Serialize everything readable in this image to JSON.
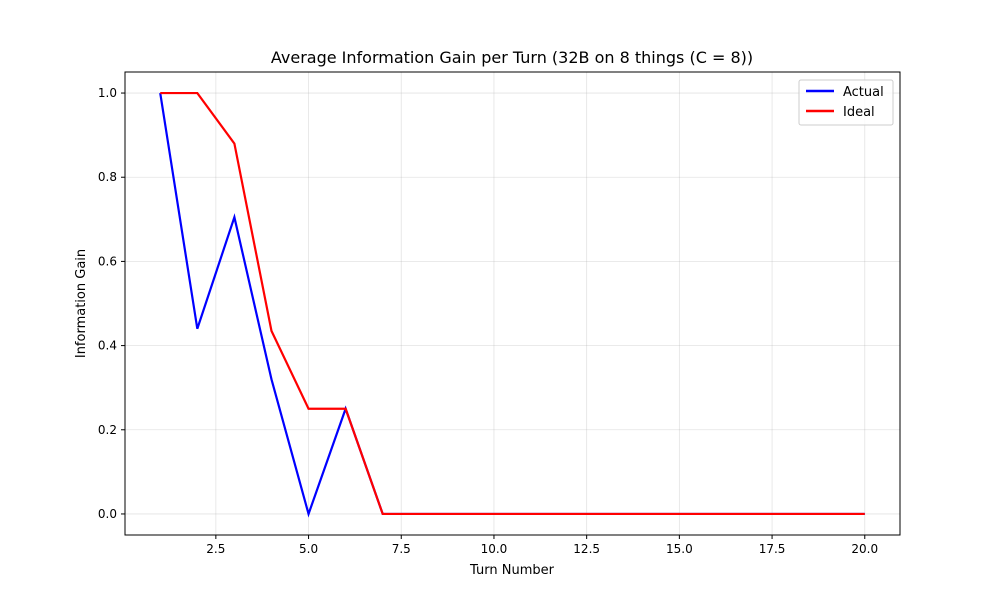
{
  "chart_data": {
    "type": "line",
    "title": "Average Information Gain per Turn (32B on 8 things (C = 8))",
    "xlabel": "Turn Number",
    "ylabel": "Information Gain",
    "xlim": [
      0.05,
      20.95
    ],
    "ylim": [
      -0.05,
      1.05
    ],
    "xticks": [
      2.5,
      5.0,
      7.5,
      10.0,
      12.5,
      15.0,
      17.5,
      20.0
    ],
    "xtick_labels": [
      "2.5",
      "5.0",
      "7.5",
      "10.0",
      "12.5",
      "15.0",
      "17.5",
      "20.0"
    ],
    "yticks": [
      0.0,
      0.2,
      0.4,
      0.6,
      0.8,
      1.0
    ],
    "ytick_labels": [
      "0.0",
      "0.2",
      "0.4",
      "0.6",
      "0.8",
      "1.0"
    ],
    "grid": true,
    "legend_position": "top-right",
    "x": [
      1,
      2,
      3,
      4,
      5,
      6,
      7,
      8,
      9,
      10,
      11,
      12,
      13,
      14,
      15,
      16,
      17,
      18,
      19,
      20
    ],
    "series": [
      {
        "name": "Actual",
        "color": "#0000ff",
        "values": [
          1.0,
          0.44,
          0.705,
          0.32,
          0.0,
          0.25,
          0.0,
          0.0,
          0.0,
          0.0,
          0.0,
          0.0,
          0.0,
          0.0,
          0.0,
          0.0,
          0.0,
          0.0,
          0.0,
          0.0
        ]
      },
      {
        "name": "Ideal",
        "color": "#ff0000",
        "values": [
          1.0,
          1.0,
          0.88,
          0.435,
          0.25,
          0.25,
          0.0,
          0.0,
          0.0,
          0.0,
          0.0,
          0.0,
          0.0,
          0.0,
          0.0,
          0.0,
          0.0,
          0.0,
          0.0,
          0.0
        ]
      }
    ]
  }
}
